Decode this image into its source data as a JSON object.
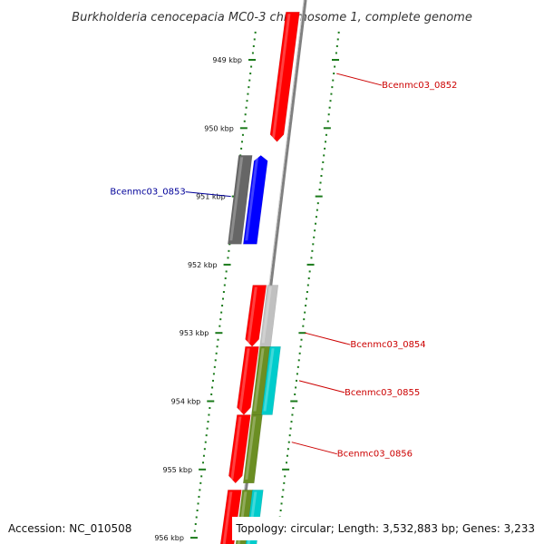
{
  "title": "Burkholderia cenocepacia MC0-3 chromosome 1, complete genome",
  "colors": {
    "forward": "#ff0000",
    "reverse_blue": "#0000ff",
    "gray": "#666666",
    "light_gray": "#c0c0c0",
    "olive": "#6b8e23",
    "cyan": "#00cccc",
    "tick": "#1a7a1a",
    "label_forward": "#cc0000",
    "label_reverse": "#000099",
    "backbone": "#808080"
  },
  "scale": {
    "unit": "kbp",
    "ticks": [
      {
        "value": 949,
        "label": "949 kbp"
      },
      {
        "value": 950,
        "label": "950 kbp"
      },
      {
        "value": 951,
        "label": "951 kbp"
      },
      {
        "value": 952,
        "label": "952 kbp"
      },
      {
        "value": 953,
        "label": "953 kbp"
      },
      {
        "value": 954,
        "label": "954 kbp"
      },
      {
        "value": 955,
        "label": "955 kbp"
      },
      {
        "value": 956,
        "label": "956 kbp"
      }
    ]
  },
  "genes": [
    {
      "id": "g1",
      "start_kbp": 948.3,
      "end_kbp": 950.2,
      "strand": "forward",
      "track": "inner",
      "color": "forward"
    },
    {
      "id": "g2",
      "start_kbp": 950.4,
      "end_kbp": 951.7,
      "strand": "none",
      "track": "outer-reverse",
      "color": "gray"
    },
    {
      "id": "g3",
      "start_kbp": 950.4,
      "end_kbp": 951.7,
      "strand": "reverse",
      "track": "inner-reverse",
      "color": "reverse_blue"
    },
    {
      "id": "g4",
      "start_kbp": 952.3,
      "end_kbp": 953.2,
      "strand": "forward",
      "track": "inner",
      "color": "forward"
    },
    {
      "id": "g5",
      "start_kbp": 952.3,
      "end_kbp": 953.2,
      "strand": "none",
      "track": "outer",
      "color": "light_gray"
    },
    {
      "id": "g6",
      "start_kbp": 953.2,
      "end_kbp": 954.2,
      "strand": "forward",
      "track": "inner",
      "color": "forward"
    },
    {
      "id": "g7",
      "start_kbp": 953.2,
      "end_kbp": 954.2,
      "strand": "none",
      "track": "outer",
      "color": "olive"
    },
    {
      "id": "g8",
      "start_kbp": 953.2,
      "end_kbp": 954.2,
      "strand": "none",
      "track": "outer2",
      "color": "cyan"
    },
    {
      "id": "g9",
      "start_kbp": 954.2,
      "end_kbp": 955.2,
      "strand": "forward",
      "track": "inner",
      "color": "forward"
    },
    {
      "id": "g10",
      "start_kbp": 954.2,
      "end_kbp": 955.2,
      "strand": "none",
      "track": "outer",
      "color": "olive"
    },
    {
      "id": "g11",
      "start_kbp": 955.3,
      "end_kbp": 956.2,
      "strand": "forward",
      "track": "inner",
      "color": "forward"
    },
    {
      "id": "g12",
      "start_kbp": 955.3,
      "end_kbp": 956.2,
      "strand": "none",
      "track": "outer",
      "color": "olive"
    },
    {
      "id": "g13",
      "start_kbp": 955.3,
      "end_kbp": 956.2,
      "strand": "none",
      "track": "outer2",
      "color": "cyan"
    }
  ],
  "labels": [
    {
      "text": "Bcenmc03_0852",
      "side": "right",
      "anchor_kbp": 949.2,
      "color": "label_forward"
    },
    {
      "text": "Bcenmc03_0853",
      "side": "left",
      "anchor_kbp": 951.0,
      "color": "label_reverse"
    },
    {
      "text": "Bcenmc03_0854",
      "side": "right",
      "anchor_kbp": 953.0,
      "color": "label_forward"
    },
    {
      "text": "Bcenmc03_0855",
      "side": "right",
      "anchor_kbp": 953.7,
      "color": "label_forward"
    },
    {
      "text": "Bcenmc03_0856",
      "side": "right",
      "anchor_kbp": 954.6,
      "color": "label_forward"
    }
  ],
  "footer": {
    "accession": "Accession: NC_010508",
    "topology": "Topology: circular; Length: 3,532,883 bp; Genes: 3,233"
  }
}
